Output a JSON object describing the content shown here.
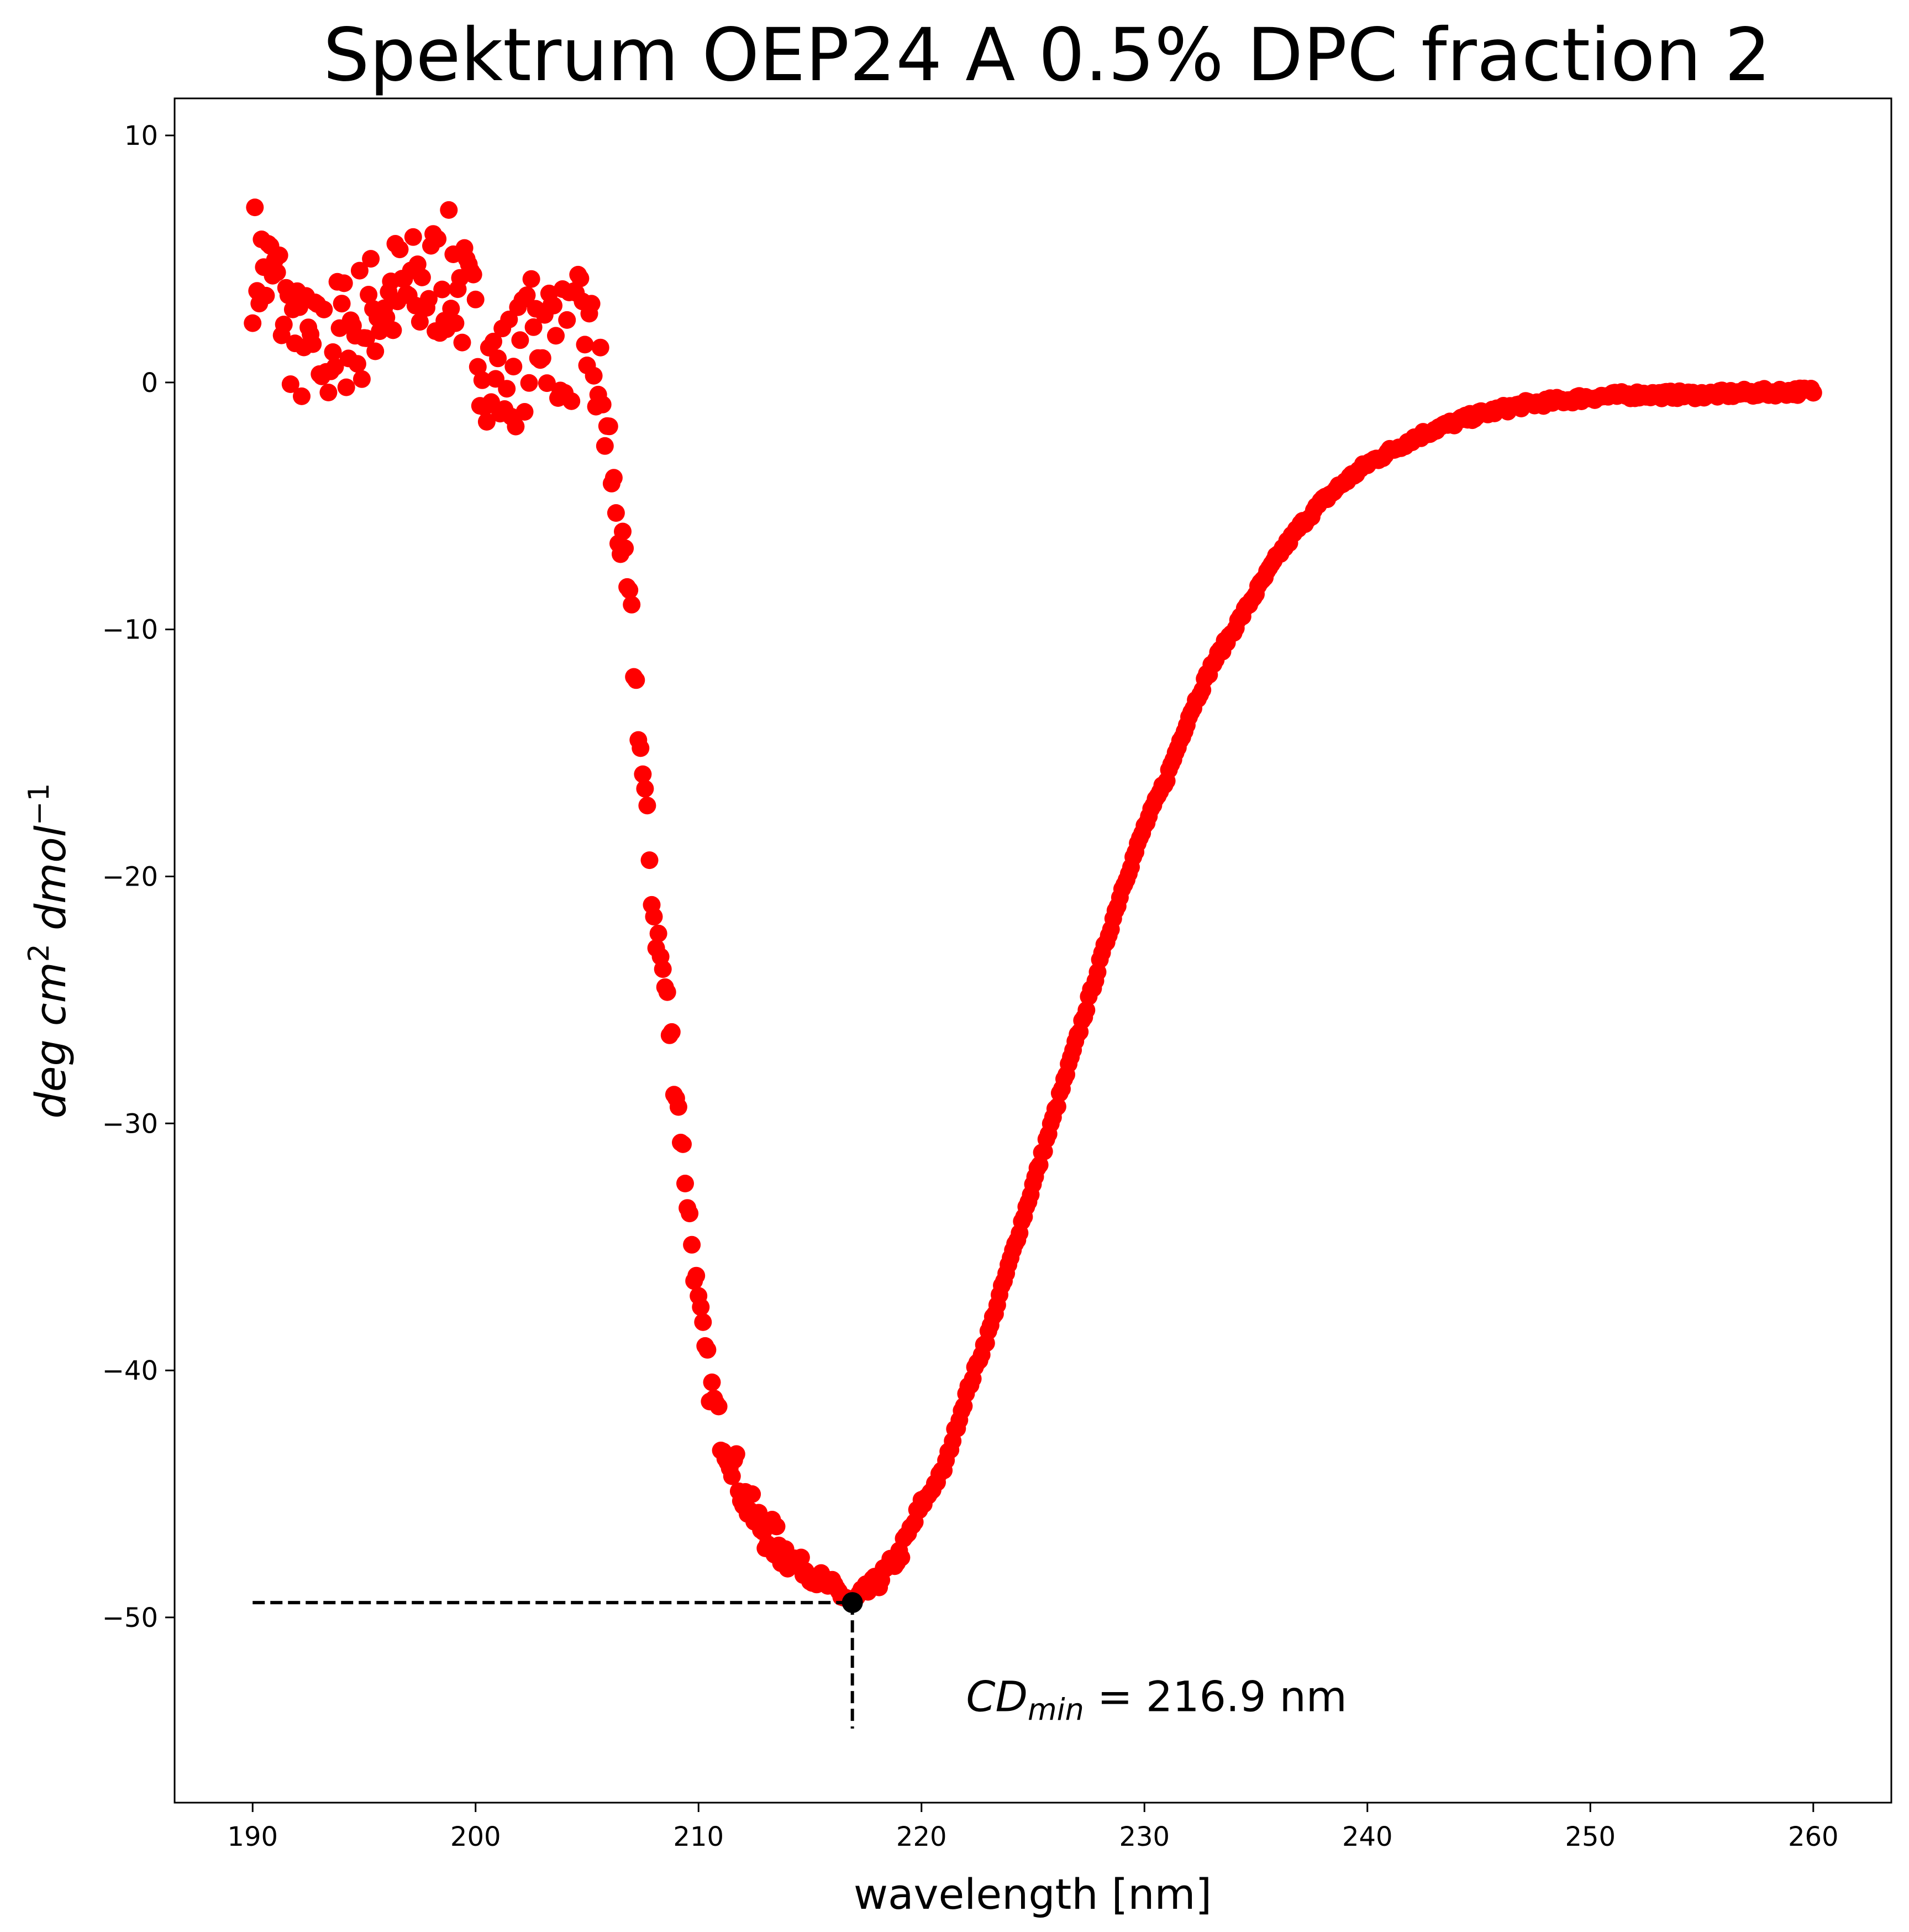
{
  "chart_data": {
    "type": "scatter",
    "title": "Spektrum OEP24 A 0.5% DPC fraction 2",
    "xlabel": "wavelength [nm]",
    "ylabel": {
      "base": "deg cm",
      "sup1": "2",
      "mid": " dmol",
      "sup2": "−1"
    },
    "xlim": [
      186.5,
      263.5
    ],
    "ylim": [
      -57.5,
      11.5
    ],
    "x_ticks": [
      {
        "value": 190,
        "label": "190"
      },
      {
        "value": 200,
        "label": "200"
      },
      {
        "value": 210,
        "label": "210"
      },
      {
        "value": 220,
        "label": "220"
      },
      {
        "value": 230,
        "label": "230"
      },
      {
        "value": 240,
        "label": "240"
      },
      {
        "value": 250,
        "label": "250"
      },
      {
        "value": 260,
        "label": "260"
      }
    ],
    "y_ticks": [
      {
        "value": 10,
        "label": "10"
      },
      {
        "value": 0,
        "label": "0"
      },
      {
        "value": -10,
        "label": "−10"
      },
      {
        "value": -20,
        "label": "−20"
      },
      {
        "value": -30,
        "label": "−30"
      },
      {
        "value": -40,
        "label": "−40"
      },
      {
        "value": -50,
        "label": "−50"
      }
    ],
    "grid": false,
    "legend": "none",
    "marker_color": "#ff0000",
    "minimum_marker_color": "#000000",
    "series": [
      {
        "color": "#ff0000",
        "x_range": [
          190,
          260
        ],
        "x_step": 0.1,
        "profile": {
          "x": [
            190.0,
            191.0,
            192.0,
            193.0,
            194.0,
            195.0,
            196.0,
            197.0,
            198.0,
            199.0,
            200.0,
            201.0,
            202.0,
            203.0,
            204.0,
            205.0,
            205.5,
            206.0,
            206.5,
            207.0,
            207.5,
            208.0,
            208.5,
            209.0,
            209.5,
            210.0,
            210.5,
            211.0,
            211.5,
            212.0,
            212.5,
            213.0,
            214.0,
            215.0,
            216.0,
            216.9,
            217.5,
            218.0,
            219.0,
            220.0,
            221.0,
            222.0,
            223.0,
            224.0,
            225.0,
            226.0,
            227.0,
            228.0,
            229.0,
            230.0,
            231.0,
            232.0,
            233.0,
            234.0,
            235.0,
            236.0,
            237.0,
            238.0,
            239.0,
            240.0,
            241.0,
            242.0,
            243.0,
            244.0,
            245.0,
            246.0,
            247.0,
            248.0,
            249.0,
            250.0,
            252.0,
            255.0,
            258.0,
            260.0
          ],
          "y": [
            5.0,
            4.0,
            1.5,
            1.0,
            2.0,
            2.5,
            3.5,
            3.5,
            4.0,
            4.5,
            2.0,
            0.0,
            1.0,
            2.5,
            1.5,
            2.0,
            0.0,
            -3.0,
            -6.5,
            -10.0,
            -16.0,
            -21.5,
            -24.5,
            -28.5,
            -33.0,
            -37.5,
            -40.5,
            -42.5,
            -43.5,
            -45.0,
            -46.0,
            -46.5,
            -47.5,
            -48.2,
            -48.8,
            -49.4,
            -49.0,
            -48.6,
            -47.5,
            -45.5,
            -44.0,
            -41.0,
            -38.5,
            -35.5,
            -32.5,
            -29.5,
            -26.5,
            -23.5,
            -20.5,
            -18.0,
            -16.0,
            -13.5,
            -11.5,
            -10.0,
            -8.5,
            -7.0,
            -5.8,
            -4.8,
            -4.0,
            -3.3,
            -2.8,
            -2.3,
            -1.9,
            -1.6,
            -1.3,
            -1.1,
            -0.9,
            -0.8,
            -0.7,
            -0.6,
            -0.5,
            -0.5,
            -0.4,
            -0.35
          ]
        },
        "noise": [
          {
            "x_to": 206.0,
            "amplitude": 2.6
          },
          {
            "x_to": 209.0,
            "amplitude": 1.2
          },
          {
            "x_to": 214.0,
            "amplitude": 0.8
          },
          {
            "x_to": 220.0,
            "amplitude": 0.35
          },
          {
            "x_to": 260.0,
            "amplitude": 0.15
          }
        ]
      }
    ],
    "minimum": {
      "x": 216.9,
      "y": -49.4
    },
    "guides": {
      "horizontal_from_x": 190.0,
      "vertical_to_y": -54.5
    },
    "annotation": {
      "prefix": "CD",
      "subscript": "min",
      "text": " = 216.9 nm",
      "x": 222.0,
      "y": -53.8
    }
  }
}
